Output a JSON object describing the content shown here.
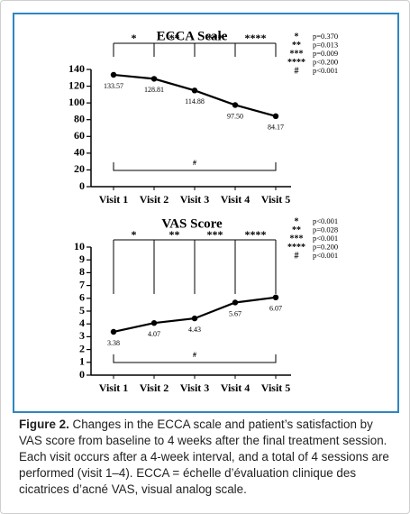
{
  "chart_data": [
    {
      "type": "line",
      "title": "ECCA Scale",
      "categories": [
        "Visit 1",
        "Visit 2",
        "Visit 3",
        "Visit 4",
        "Visit 5"
      ],
      "values": [
        133.57,
        128.81,
        114.88,
        97.5,
        84.17
      ],
      "value_labels": [
        "133.57",
        "128.81",
        "114.88",
        "97.50",
        "84.17"
      ],
      "color": "#000000",
      "ylim": [
        0,
        140
      ],
      "yticks": [
        0,
        20,
        40,
        60,
        80,
        100,
        120,
        140
      ],
      "significance": [
        {
          "marker": "*",
          "p": "p=0.370"
        },
        {
          "marker": "**",
          "p": "p=0.013"
        },
        {
          "marker": "***",
          "p": "p=0.009"
        },
        {
          "marker": "****",
          "p": "p<0.200"
        }
      ],
      "overall": {
        "marker": "#",
        "p": "p<0.001"
      }
    },
    {
      "type": "line",
      "title": "VAS Score",
      "categories": [
        "Visit 1",
        "Visit 2",
        "Visit 3",
        "Visit 4",
        "Visit 5"
      ],
      "values": [
        3.38,
        4.07,
        4.43,
        5.67,
        6.07
      ],
      "color": "#000000",
      "ylim": [
        0,
        10
      ],
      "yticks": [
        0,
        1,
        2,
        3,
        4,
        5,
        6,
        7,
        8,
        9,
        10
      ],
      "significance": [
        {
          "marker": "*",
          "p": "p<0.001"
        },
        {
          "marker": "**",
          "p": "p=0.028"
        },
        {
          "marker": "***",
          "p": "p<0.001"
        },
        {
          "marker": "****",
          "p": "p=0.200"
        }
      ],
      "overall": {
        "marker": "#",
        "p": "p<0.001"
      }
    }
  ],
  "caption": {
    "label": "Figure 2.",
    "text": "Changes in the ECCA scale and patient’s satisfaction by VAS score from baseline to 4 weeks after the final treatment session. Each visit occurs after a 4-week interval, and a total of 4 sessions are performed (visit 1–4). ECCA = échelle d’évaluation clinique des cicatrices d’acné VAS, visual analog scale."
  }
}
